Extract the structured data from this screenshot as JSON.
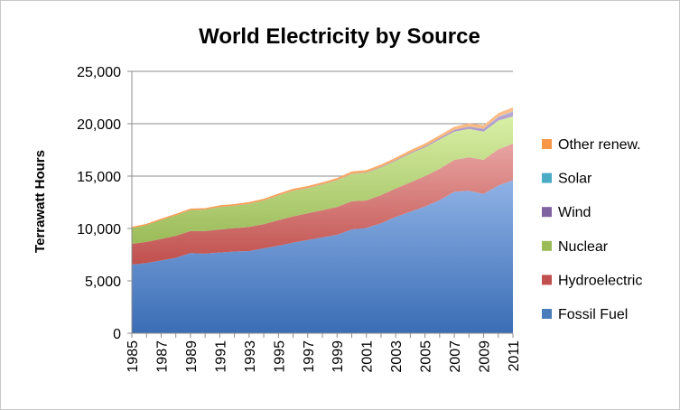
{
  "chart_data": {
    "type": "area",
    "stacked": true,
    "title": "World Electricity by Source",
    "xlabel": "",
    "ylabel": "Terrawatt Hours",
    "x": [
      1985,
      1986,
      1987,
      1988,
      1989,
      1990,
      1991,
      1992,
      1993,
      1994,
      1995,
      1996,
      1997,
      1998,
      1999,
      2000,
      2001,
      2002,
      2003,
      2004,
      2005,
      2006,
      2007,
      2008,
      2009,
      2010,
      2011
    ],
    "x_tick_labels": [
      "1985",
      "1987",
      "1989",
      "1991",
      "1993",
      "1995",
      "1997",
      "1999",
      "2001",
      "2003",
      "2005",
      "2007",
      "2009",
      "2011"
    ],
    "ylim": [
      0,
      25000
    ],
    "y_tick_labels": [
      "0",
      "5,000",
      "10,000",
      "15,000",
      "20,000",
      "25,000"
    ],
    "grid": "horizontal",
    "legend_position": "right",
    "series": [
      {
        "name": "Fossil Fuel",
        "color": "#4a7ebb",
        "values": [
          6550,
          6700,
          6950,
          7200,
          7650,
          7600,
          7700,
          7800,
          7850,
          8100,
          8350,
          8650,
          8900,
          9150,
          9400,
          9900,
          10050,
          10500,
          11100,
          11600,
          12100,
          12700,
          13500,
          13600,
          13300,
          14100,
          14600
        ]
      },
      {
        "name": "Hydroelectric",
        "color": "#c0504d",
        "values": [
          1980,
          2020,
          2050,
          2100,
          2100,
          2150,
          2200,
          2220,
          2300,
          2310,
          2450,
          2500,
          2550,
          2600,
          2650,
          2700,
          2620,
          2680,
          2720,
          2800,
          2900,
          3000,
          3050,
          3200,
          3250,
          3450,
          3500
        ]
      },
      {
        "name": "Nuclear",
        "color": "#9bbb59",
        "values": [
          1500,
          1600,
          1800,
          1950,
          2000,
          2050,
          2150,
          2150,
          2200,
          2250,
          2350,
          2450,
          2400,
          2450,
          2550,
          2600,
          2650,
          2650,
          2650,
          2750,
          2750,
          2800,
          2700,
          2700,
          2700,
          2750,
          2600
        ]
      },
      {
        "name": "Wind",
        "color": "#8064a2",
        "values": [
          5,
          5,
          5,
          5,
          5,
          5,
          5,
          10,
          10,
          10,
          10,
          10,
          20,
          20,
          20,
          30,
          40,
          50,
          60,
          80,
          100,
          130,
          170,
          220,
          270,
          340,
          430
        ]
      },
      {
        "name": "Solar",
        "color": "#4bacc6",
        "values": [
          0,
          0,
          0,
          0,
          0,
          0,
          0,
          0,
          0,
          0,
          0,
          0,
          0,
          0,
          0,
          0,
          0,
          0,
          0,
          0,
          0,
          0,
          0,
          10,
          20,
          30,
          60
        ]
      },
      {
        "name": "Other renew.",
        "color": "#f79646",
        "values": [
          120,
          120,
          130,
          130,
          140,
          140,
          150,
          150,
          160,
          160,
          170,
          180,
          180,
          190,
          200,
          210,
          210,
          220,
          230,
          250,
          260,
          270,
          290,
          300,
          320,
          340,
          370
        ]
      }
    ]
  }
}
